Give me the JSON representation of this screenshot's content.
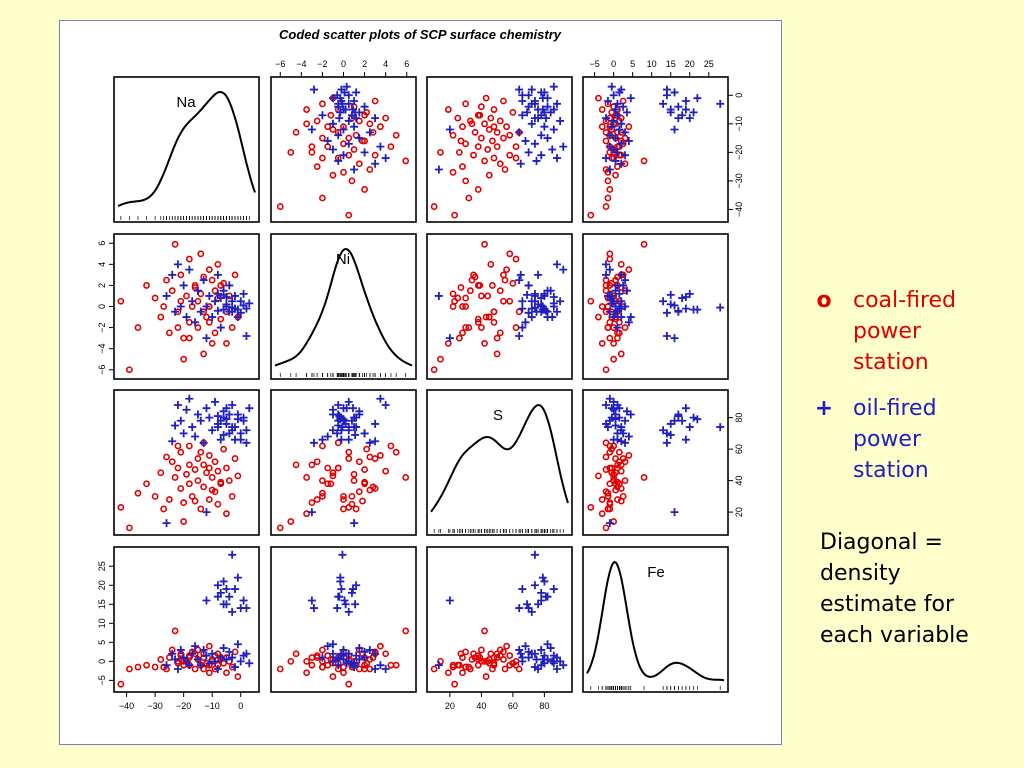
{
  "chart_data": {
    "type": "scatter",
    "title": "Coded scatter plots of SCP surface chemistry",
    "variables": [
      "Na",
      "Ni",
      "S",
      "Fe"
    ],
    "ranges": {
      "Na": [
        -43,
        5
      ],
      "Ni": [
        -6.5,
        6.5
      ],
      "S": [
        8,
        95
      ],
      "Fe": [
        -7,
        29
      ]
    },
    "ticks": {
      "Na": [
        -40,
        -30,
        -20,
        -10,
        0
      ],
      "Ni": [
        -6,
        -4,
        -2,
        0,
        2,
        4,
        6
      ],
      "S": [
        20,
        40,
        60,
        80
      ],
      "Fe": [
        -5,
        0,
        5,
        10,
        15,
        20,
        25
      ]
    },
    "diagonal": "density",
    "series": [
      {
        "name": "coal-fired power station",
        "marker": "circle",
        "color": "#e00000",
        "points": [
          [
            -42,
            0.5,
            23,
            -6
          ],
          [
            -39,
            -6,
            10,
            -2
          ],
          [
            -36,
            -2,
            32,
            -1.5
          ],
          [
            -33,
            2,
            38,
            -1
          ],
          [
            -30,
            0.8,
            30,
            -1.5
          ],
          [
            -28,
            -1,
            45,
            0.5
          ],
          [
            -26,
            2.5,
            55,
            -2
          ],
          [
            -25,
            -2.5,
            28,
            1
          ],
          [
            -24,
            1.5,
            52,
            3
          ],
          [
            -23,
            5.9,
            42,
            8
          ],
          [
            -22,
            -0.5,
            48,
            -0.5
          ],
          [
            -21,
            0.5,
            58,
            1.5
          ],
          [
            -21,
            3,
            35,
            2
          ],
          [
            -20,
            -3,
            26,
            -1
          ],
          [
            -19,
            1,
            44,
            0
          ],
          [
            -18,
            -1.5,
            38,
            1.5
          ],
          [
            -18,
            4.5,
            62,
            -1
          ],
          [
            -17,
            0,
            30,
            2.5
          ],
          [
            -16,
            2,
            47,
            -2
          ],
          [
            -15,
            -2,
            40,
            3
          ],
          [
            -15,
            0.5,
            54,
            0.5
          ],
          [
            -14,
            1.2,
            22,
            -1
          ],
          [
            -13,
            -4.5,
            50,
            2
          ],
          [
            -13,
            2.8,
            36,
            1
          ],
          [
            -12,
            -1,
            45,
            -0.5
          ],
          [
            -11,
            0,
            28,
            -3
          ],
          [
            -11,
            3.5,
            56,
            4
          ],
          [
            -10,
            -3.5,
            42,
            0
          ],
          [
            -9,
            1.5,
            33,
            -2
          ],
          [
            -9,
            -2.5,
            52,
            1.5
          ],
          [
            -8,
            0.8,
            25,
            -1
          ],
          [
            -8,
            4,
            46,
            2
          ],
          [
            -7,
            -1.2,
            38,
            0.5
          ],
          [
            -6,
            2.2,
            60,
            -0.5
          ],
          [
            -5,
            -0.5,
            48,
            1
          ],
          [
            -5,
            -3.5,
            19,
            -3
          ],
          [
            -4,
            1,
            40,
            0
          ],
          [
            -3,
            -2,
            30,
            -1.5
          ],
          [
            -2,
            3,
            54,
            2.5
          ],
          [
            -1,
            -1,
            43,
            -4
          ],
          [
            -20,
            -5,
            14,
            0
          ],
          [
            -14,
            5,
            58,
            -1
          ],
          [
            -27,
            0,
            22,
            -1.5
          ],
          [
            -18,
            -3,
            50,
            1
          ],
          [
            -10,
            2.5,
            34,
            0.5
          ],
          [
            -13,
            -0.5,
            64,
            -2
          ],
          [
            -16,
            1.8,
            27,
            2
          ],
          [
            -22,
            -2,
            62,
            0
          ],
          [
            -7,
            2,
            39,
            1
          ],
          [
            -11,
            -1.5,
            48,
            -1
          ]
        ]
      },
      {
        "name": "oil-fired power station",
        "marker": "cross",
        "color": "#2020c0",
        "points": [
          [
            -26,
            1,
            13,
            -1
          ],
          [
            -24,
            3,
            65,
            2
          ],
          [
            -23,
            -0.5,
            75,
            0.5
          ],
          [
            -22,
            4,
            88,
            -2
          ],
          [
            -21,
            0,
            78,
            3
          ],
          [
            -20,
            2,
            70,
            1
          ],
          [
            -19,
            -1,
            85,
            0
          ],
          [
            -18,
            3.5,
            92,
            -1
          ],
          [
            -17,
            0.5,
            74,
            2
          ],
          [
            -16,
            -1.5,
            68,
            4
          ],
          [
            -15,
            1.5,
            82,
            0.5
          ],
          [
            -14,
            -0.5,
            78,
            -1
          ],
          [
            -13,
            2.5,
            64,
            3
          ],
          [
            -12,
            0,
            86,
            1.5
          ],
          [
            -11,
            1,
            80,
            -0.5
          ],
          [
            -10,
            -1,
            72,
            2
          ],
          [
            -9,
            0.5,
            90,
            0
          ],
          [
            -8,
            3,
            76,
            -2
          ],
          [
            -7,
            -2,
            66,
            1
          ],
          [
            -6,
            1.5,
            84,
            3.5
          ],
          [
            -5,
            0,
            79,
            0.5
          ],
          [
            -4,
            2,
            70,
            2.5
          ],
          [
            -3,
            -0.5,
            88,
            1
          ],
          [
            -2,
            1,
            74,
            -1.5
          ],
          [
            -1,
            -1,
            82,
            4.5
          ],
          [
            0,
            0.5,
            66,
            0
          ],
          [
            1,
            1.2,
            80,
            1.5
          ],
          [
            2,
            -0.2,
            72,
            2
          ],
          [
            3,
            0.3,
            86,
            -0.5
          ],
          [
            -12,
            -3,
            20,
            16
          ],
          [
            -8,
            1.2,
            74,
            20
          ],
          [
            -7,
            0.8,
            78,
            18
          ],
          [
            -6,
            -0.3,
            80,
            21
          ],
          [
            -5,
            0.2,
            76,
            15
          ],
          [
            -4,
            -0.5,
            82,
            17
          ],
          [
            -3,
            0.5,
            72,
            13
          ],
          [
            -2,
            -0.2,
            66,
            19
          ],
          [
            -1,
            -0.3,
            79,
            22
          ],
          [
            -3,
            -0.1,
            74,
            28
          ],
          [
            0,
            -0.6,
            70,
            14
          ],
          [
            1,
            0.1,
            78,
            16
          ],
          [
            2,
            -2.8,
            64,
            14
          ],
          [
            -5,
            0.9,
            86,
            19
          ],
          [
            -8,
            -0.4,
            81,
            17
          ],
          [
            -6,
            1.1,
            69,
            15
          ]
        ]
      }
    ]
  },
  "legend": {
    "coal_symbol": "o",
    "coal_label": "coal-fired power station",
    "oil_symbol": "+",
    "oil_label": "oil-fired power station"
  },
  "note": "Diagonal = density estimate for each variable"
}
